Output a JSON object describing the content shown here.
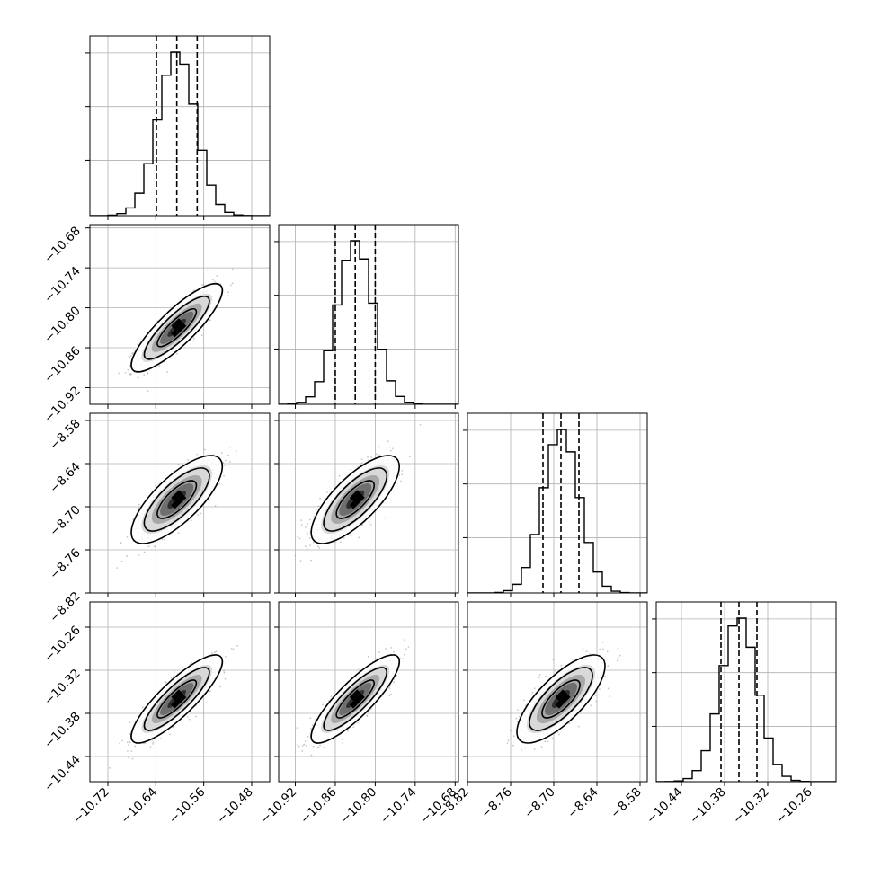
{
  "chart_data": {
    "type": "corner",
    "title": "",
    "parameters": [
      {
        "label": "",
        "range": [
          -10.75,
          -10.45
        ],
        "ticks": [
          -10.72,
          -10.64,
          -10.56,
          -10.48
        ],
        "tick_labels": [
          "−10.72",
          "−10.64",
          "−10.56",
          "−10.48"
        ],
        "mean": -10.605,
        "sd": 0.031,
        "quantiles": [
          -10.639,
          -10.605,
          -10.571
        ]
      },
      {
        "label": "",
        "range": [
          -10.945,
          -10.675
        ],
        "ticks": [
          -10.92,
          -10.86,
          -10.8,
          -10.74,
          -10.68
        ],
        "tick_labels": [
          "−10.92",
          "−10.86",
          "−10.80",
          "−10.74",
          "−10.68"
        ],
        "mean": -10.83,
        "sd": 0.027,
        "quantiles": [
          -10.86,
          -10.83,
          -10.8
        ]
      },
      {
        "label": "",
        "range": [
          -8.82,
          -8.57
        ],
        "ticks": [
          -8.82,
          -8.76,
          -8.7,
          -8.64,
          -8.58
        ],
        "tick_labels": [
          "−8.82",
          "−8.76",
          "−8.70",
          "−8.64",
          "−8.58"
        ],
        "mean": -8.69,
        "sd": 0.025,
        "quantiles": [
          -8.715,
          -8.69,
          -8.665
        ]
      },
      {
        "label": "",
        "range": [
          -10.475,
          -10.225
        ],
        "ticks": [
          -10.44,
          -10.38,
          -10.32,
          -10.26
        ],
        "tick_labels": [
          "−10.44",
          "−10.38",
          "−10.32",
          "−10.26"
        ],
        "mean": -10.36,
        "sd": 0.025,
        "quantiles": [
          -10.385,
          -10.36,
          -10.335
        ]
      }
    ],
    "correlations": {
      "1-0": 0.85,
      "2-0": 0.75,
      "2-1": 0.75,
      "3-0": 0.85,
      "3-1": 0.85,
      "3-2": 0.75
    },
    "histogram_bins": 20,
    "contour_levels": [
      "0.5 sigma",
      "1.0 sigma",
      "1.5 sigma",
      "2.0 sigma"
    ],
    "grid": true,
    "colors": {
      "axis": "#000000",
      "grid": "#b0b0b0",
      "points": "#9a9a9a",
      "density_dark": "#000000",
      "contour": "#000000"
    }
  }
}
